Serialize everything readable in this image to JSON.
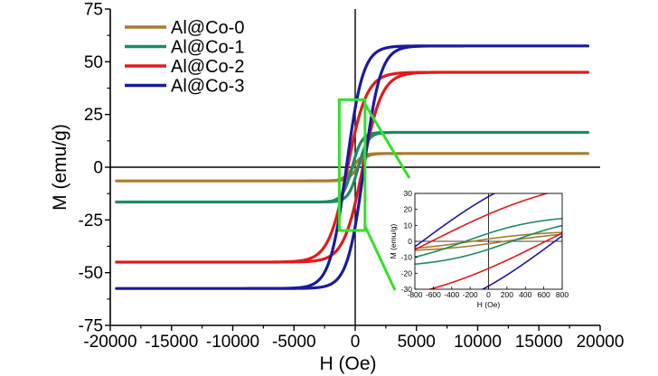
{
  "chart_data": {
    "type": "line",
    "xlabel": "H (Oe)",
    "ylabel": "M (emu/g)",
    "xlim": [
      -20000,
      20000
    ],
    "ylim": [
      -75,
      75
    ],
    "xticks": [
      -20000,
      -15000,
      -10000,
      -5000,
      0,
      5000,
      10000,
      15000,
      20000
    ],
    "yticks": [
      -75,
      -50,
      -25,
      0,
      25,
      50,
      75
    ],
    "legend_position": "top-left",
    "series": [
      {
        "name": "Al@Co-0",
        "color": "#a67c2d",
        "ms": 6.5,
        "hc": 180,
        "mr": 1.5,
        "h0": 1800
      },
      {
        "name": "Al@Co-1",
        "color": "#1f8a67",
        "ms": 16.5,
        "hc": 250,
        "mr": 5,
        "h0": 1600
      },
      {
        "name": "Al@Co-2",
        "color": "#e01b1b",
        "ms": 45,
        "hc": 620,
        "mr": 17,
        "h0": 1400
      },
      {
        "name": "Al@Co-3",
        "color": "#1a1a9e",
        "ms": 57.5,
        "hc": 720,
        "mr": 28,
        "h0": 1500
      }
    ],
    "x_range_data": [
      -19500,
      19000
    ],
    "zoom_box": {
      "x": [
        -1300,
        800
      ],
      "y": [
        -30,
        32
      ]
    },
    "inset": {
      "xlabel": "H (Oe)",
      "ylabel": "M (emu/g)",
      "xlim": [
        -800,
        800
      ],
      "ylim": [
        -30,
        30
      ],
      "xticks": [
        -800,
        -600,
        -400,
        -200,
        0,
        200,
        400,
        600,
        800
      ],
      "yticks": [
        -30,
        -20,
        -10,
        0,
        10,
        20,
        30
      ]
    }
  },
  "colors": {
    "axis": "#000000",
    "zoom": "#33e02a"
  }
}
